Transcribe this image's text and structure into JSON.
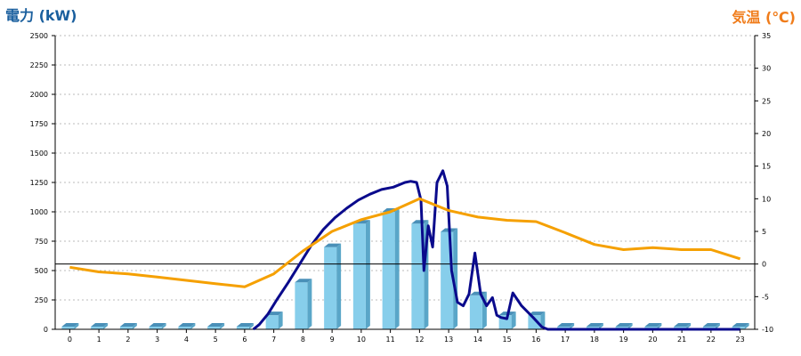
{
  "chart_data": {
    "type": "bar+line",
    "title": "",
    "y_left_label": "電力 (kW)",
    "y_right_label": "気温 (℃)",
    "categories": [
      "0",
      "1",
      "2",
      "3",
      "4",
      "5",
      "6",
      "7",
      "8",
      "9",
      "10",
      "11",
      "12",
      "13",
      "14",
      "15",
      "16",
      "17",
      "18",
      "19",
      "20",
      "21",
      "22",
      "23"
    ],
    "y_left_range": [
      0,
      2500
    ],
    "y_left_ticks": [
      0,
      250,
      500,
      750,
      1000,
      1250,
      1500,
      1750,
      2000,
      2250,
      2500
    ],
    "y_right_range": [
      -10,
      35
    ],
    "y_right_ticks": [
      -10,
      -5,
      0,
      5,
      10,
      15,
      20,
      25,
      30,
      35
    ],
    "grid": true,
    "colors": {
      "bar_front": "#87ceeb",
      "bar_side": "#5aa6c8",
      "bar_top": "#4a90b8",
      "power_line": "#0a0a8c",
      "temp_line": "#f5a000",
      "zero_line": "#000000",
      "grid": "#bbbbbb",
      "left_label": "#1a5f9e",
      "right_label": "#f07c1a"
    },
    "series": [
      {
        "kind": "bar",
        "axis": "left",
        "values": [
          0,
          0,
          0,
          0,
          0,
          0,
          0,
          120,
          400,
          700,
          900,
          1000,
          900,
          830,
          290,
          120,
          120,
          0,
          0,
          0,
          0,
          0,
          0,
          0
        ]
      },
      {
        "kind": "line",
        "axis": "left",
        "points": [
          [
            6.3,
            0
          ],
          [
            6.5,
            40
          ],
          [
            6.8,
            130
          ],
          [
            7.1,
            250
          ],
          [
            7.5,
            400
          ],
          [
            7.9,
            560
          ],
          [
            8.3,
            720
          ],
          [
            8.7,
            850
          ],
          [
            9.1,
            950
          ],
          [
            9.5,
            1030
          ],
          [
            9.9,
            1100
          ],
          [
            10.3,
            1150
          ],
          [
            10.7,
            1190
          ],
          [
            11.1,
            1210
          ],
          [
            11.5,
            1250
          ],
          [
            11.7,
            1260
          ],
          [
            11.9,
            1250
          ],
          [
            12.05,
            1100
          ],
          [
            12.15,
            500
          ],
          [
            12.3,
            880
          ],
          [
            12.45,
            700
          ],
          [
            12.6,
            1250
          ],
          [
            12.8,
            1350
          ],
          [
            12.95,
            1220
          ],
          [
            13.1,
            500
          ],
          [
            13.3,
            230
          ],
          [
            13.5,
            200
          ],
          [
            13.7,
            300
          ],
          [
            13.9,
            650
          ],
          [
            14.1,
            300
          ],
          [
            14.3,
            200
          ],
          [
            14.5,
            270
          ],
          [
            14.65,
            120
          ],
          [
            14.8,
            100
          ],
          [
            15.0,
            90
          ],
          [
            15.2,
            310
          ],
          [
            15.5,
            200
          ],
          [
            15.9,
            100
          ],
          [
            16.2,
            20
          ],
          [
            16.4,
            0
          ],
          [
            23,
            0
          ]
        ]
      },
      {
        "kind": "line",
        "axis": "right",
        "points": [
          [
            0,
            -0.5
          ],
          [
            1,
            -1.2
          ],
          [
            2,
            -1.5
          ],
          [
            3,
            -2.0
          ],
          [
            4,
            -2.5
          ],
          [
            5,
            -3.0
          ],
          [
            6,
            -3.5
          ],
          [
            7,
            -1.5
          ],
          [
            8,
            2.0
          ],
          [
            9,
            5.0
          ],
          [
            10,
            6.8
          ],
          [
            11,
            8.0
          ],
          [
            12,
            10.0
          ],
          [
            13,
            8.2
          ],
          [
            14,
            7.2
          ],
          [
            15,
            6.7
          ],
          [
            16,
            6.5
          ],
          [
            17,
            4.8
          ],
          [
            18,
            3.0
          ],
          [
            19,
            2.2
          ],
          [
            20,
            2.5
          ],
          [
            21,
            2.2
          ],
          [
            22,
            2.2
          ],
          [
            23,
            0.8
          ]
        ]
      }
    ]
  }
}
